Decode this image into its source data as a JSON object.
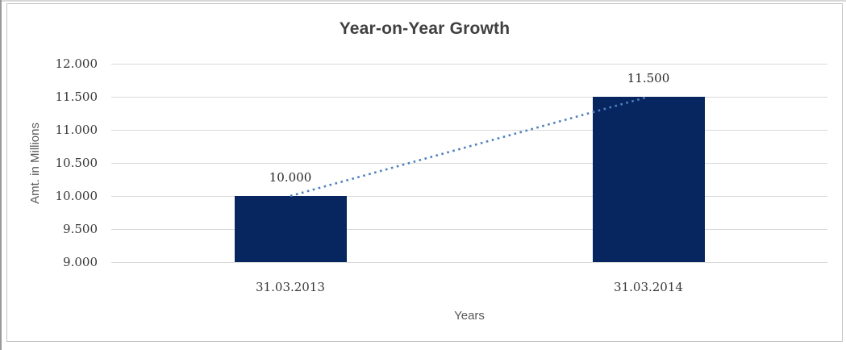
{
  "chart_data": {
    "type": "bar",
    "title": "Year-on-Year Growth",
    "xlabel": "Years",
    "ylabel": "Amt. in Millions",
    "categories": [
      "31.03.2013",
      "31.03.2014"
    ],
    "values": [
      10.0,
      11.5
    ],
    "data_labels": [
      "10.000",
      "11.500"
    ],
    "ylim": [
      9.0,
      12.0
    ],
    "ytick_step": 0.5,
    "ytick_labels": [
      "9.000",
      "9.500",
      "10.000",
      "10.500",
      "11.000",
      "11.500",
      "12.000"
    ],
    "grid": true,
    "legend": "none",
    "trendline": {
      "style": "dotted",
      "from_category_index": 0,
      "from_value": 10.0,
      "to_category_index": 1,
      "to_value": 11.5
    },
    "colors": {
      "bar": "#07255e",
      "trendline": "#4f81bd",
      "gridline": "#d9d9d9",
      "title_text": "#404040",
      "axis_title_text": "#595959",
      "tick_text": "#383838",
      "chart_border": "#c3c3c3"
    }
  }
}
